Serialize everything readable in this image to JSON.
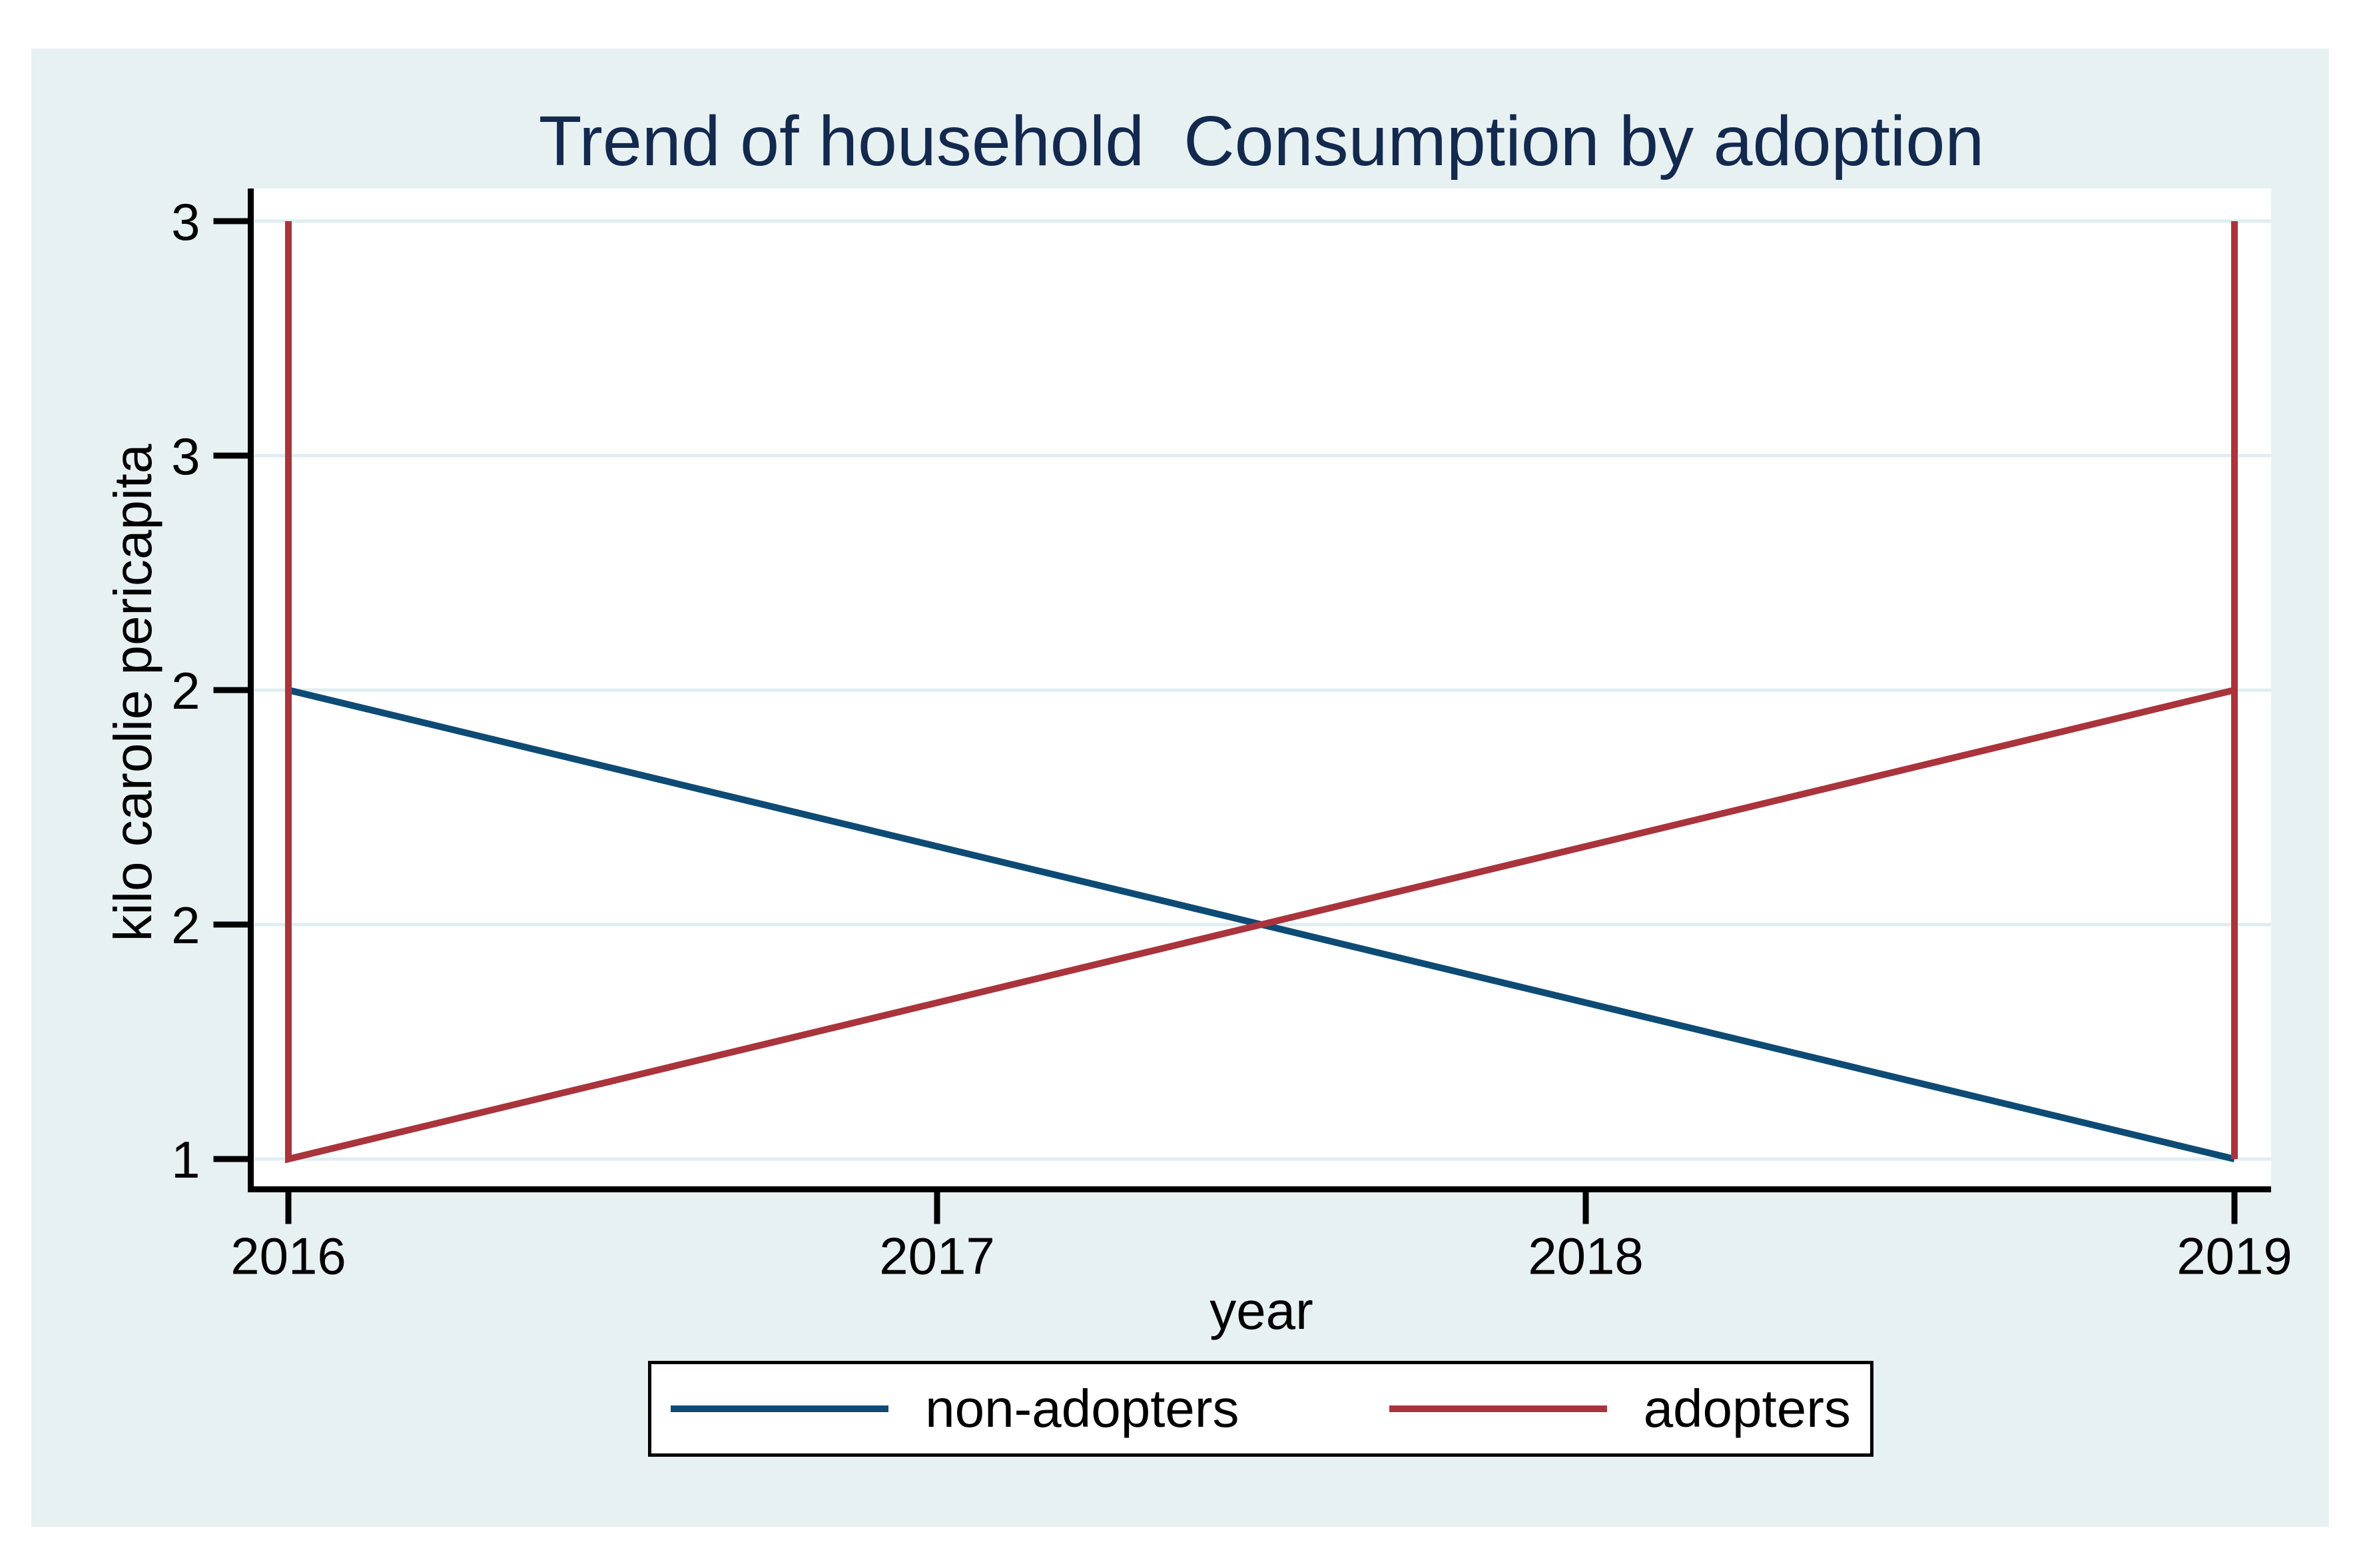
{
  "figure": {
    "background_color": "#e8f1f2",
    "plot_background_color": "#ffffff",
    "title_color": "#13294e",
    "axis_color": "#000000",
    "legend_border_color": "#000000",
    "legend_background_color": "#ffffff"
  },
  "chart_data": {
    "type": "line",
    "title": "Trend of household  Consumption by adoption",
    "xlabel": "year",
    "ylabel": "kilo carolie pericapita",
    "xlim": [
      2016,
      2019
    ],
    "ylim": [
      1,
      3
    ],
    "x_ticks": [
      2016,
      2017,
      2018,
      2019
    ],
    "x_tick_labels": [
      "2016",
      "2017",
      "2018",
      "2019"
    ],
    "y_ticks": [
      3,
      2.5,
      2,
      1.5,
      1
    ],
    "y_tick_labels": [
      "3",
      "3",
      "2",
      "2",
      "1"
    ],
    "grid": true,
    "grid_color": "#dfedf1",
    "legend_position": "bottom-center",
    "series": [
      {
        "name": "non-adopters",
        "color": "#0d4b75",
        "points": [
          [
            2016,
            2
          ],
          [
            2019,
            1
          ]
        ]
      },
      {
        "name": "adopters",
        "color": "#a9343c",
        "points": [
          [
            2016,
            3
          ],
          [
            2016,
            1
          ],
          [
            2019,
            2
          ],
          [
            2019,
            3
          ],
          [
            2019,
            1
          ]
        ],
        "note": "vertical range spikes at 2016 and 2019 spanning y=1 to y=3; diagonal rises from (2016,1) to (2019,2)"
      }
    ]
  }
}
